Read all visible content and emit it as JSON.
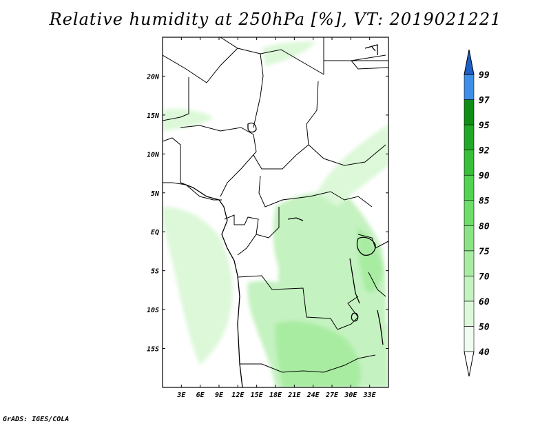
{
  "title": "Relative humidity at 250hPa [%], VT: 2019021221",
  "footer": "GrADS: IGES/COLA",
  "map": {
    "lon_range": [
      0,
      36
    ],
    "lat_range": [
      -20,
      25
    ],
    "lon_ticks": [
      {
        "value": 3,
        "label": "3E"
      },
      {
        "value": 6,
        "label": "6E"
      },
      {
        "value": 9,
        "label": "9E"
      },
      {
        "value": 12,
        "label": "12E"
      },
      {
        "value": 15,
        "label": "15E"
      },
      {
        "value": 18,
        "label": "18E"
      },
      {
        "value": 21,
        "label": "21E"
      },
      {
        "value": 24,
        "label": "24E"
      },
      {
        "value": 27,
        "label": "27E"
      },
      {
        "value": 30,
        "label": "30E"
      },
      {
        "value": 33,
        "label": "33E"
      }
    ],
    "lat_ticks": [
      {
        "value": 20,
        "label": "20N"
      },
      {
        "value": 15,
        "label": "15N"
      },
      {
        "value": 10,
        "label": "10N"
      },
      {
        "value": 5,
        "label": "5N"
      },
      {
        "value": 0,
        "label": "EQ"
      },
      {
        "value": -5,
        "label": "5S"
      },
      {
        "value": -10,
        "label": "10S"
      },
      {
        "value": -15,
        "label": "15S"
      }
    ],
    "humidity_fill_color": "#c4f2c0"
  },
  "colorbar": {
    "levels": [
      {
        "label": "40",
        "color": "#f0fcef"
      },
      {
        "label": "50",
        "color": "#dcf8d8"
      },
      {
        "label": "60",
        "color": "#c4f2c0"
      },
      {
        "label": "70",
        "color": "#a8eca2"
      },
      {
        "label": "75",
        "color": "#8ae485"
      },
      {
        "label": "80",
        "color": "#6ede6a"
      },
      {
        "label": "85",
        "color": "#52d450"
      },
      {
        "label": "90",
        "color": "#38c03a"
      },
      {
        "label": "92",
        "color": "#22a828"
      },
      {
        "label": "95",
        "color": "#0e8e14"
      },
      {
        "label": "97",
        "color": "#3f8ee8"
      },
      {
        "label": "99",
        "color": "#2a6fd8"
      }
    ],
    "top_color": "#1d5fc8",
    "bottom_color": "#ffffff"
  }
}
